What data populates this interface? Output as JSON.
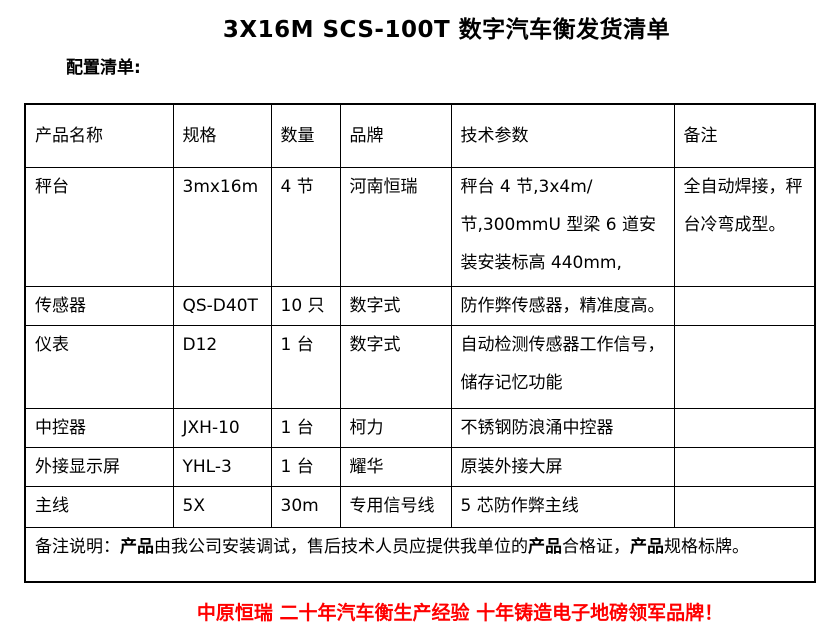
{
  "document": {
    "title": "3X16M SCS-100T 数字汽车衡发货清单",
    "section_label": "配置清单:",
    "footer": {
      "text": "中原恒瑞 二十年汽车衡生产经验 十年铸造电子地磅领军品牌！",
      "color": "#ff0000"
    }
  },
  "colors": {
    "text": "#000000",
    "border": "#000000",
    "background": "#ffffff"
  },
  "table": {
    "headers": [
      "产品名称",
      "规格",
      "数量",
      "品牌",
      "技术参数",
      "备注"
    ],
    "rows": [
      {
        "name": "秤台",
        "spec": "3mx16m",
        "qty": "4 节",
        "brand": "河南恒瑞",
        "params": "秤台 4 节,3x4m/节,300mmU 型梁 6 道安装安装标高 440mm,",
        "note": "全自动焊接，秤台冷弯成型。"
      },
      {
        "name": "传感器",
        "spec": "QS-D40T",
        "qty": "10 只",
        "brand": "数字式",
        "params": "防作弊传感器，精准度高。",
        "note": ""
      },
      {
        "name": "仪表",
        "spec": "D12",
        "qty": "1 台",
        "brand": "数字式",
        "params": "自动检测传感器工作信号，储存记忆功能",
        "note": ""
      },
      {
        "name": "中控器",
        "spec": "JXH-10",
        "qty": "1 台",
        "brand": "柯力",
        "params": "不锈钢防浪涌中控器",
        "note": ""
      },
      {
        "name": "外接显示屏",
        "spec": "YHL-3",
        "qty": "1 台",
        "brand": "耀华",
        "params": "原装外接大屏",
        "note": ""
      },
      {
        "name": "主线",
        "spec": "5X",
        "qty": "30m",
        "brand": "专用信号线",
        "params": "5 芯防作弊主线",
        "note": ""
      }
    ],
    "remark_segments": [
      {
        "text": "备注说明：",
        "bold": false
      },
      {
        "text": "产品",
        "bold": true
      },
      {
        "text": "由我公司安装调试，售后技术人员应提供我单位的",
        "bold": false
      },
      {
        "text": "产品",
        "bold": true
      },
      {
        "text": "合格证，",
        "bold": false
      },
      {
        "text": "产品",
        "bold": true
      },
      {
        "text": "规格标牌。",
        "bold": false
      }
    ]
  }
}
